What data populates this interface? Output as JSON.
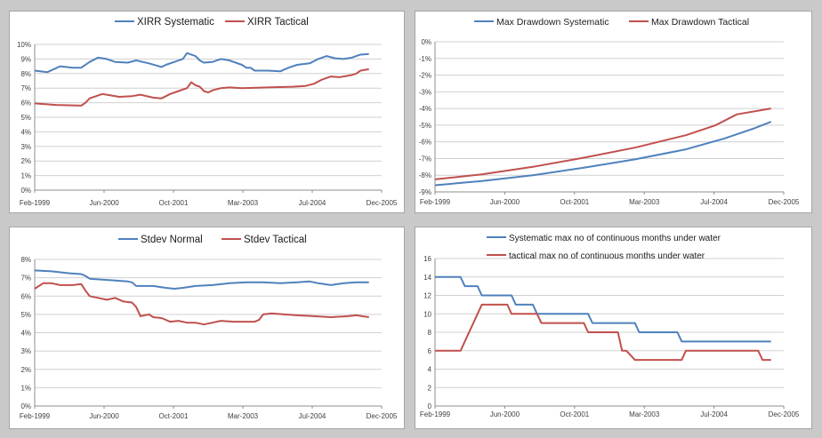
{
  "colors": {
    "blue": "#4f81bd",
    "red": "#c0504d"
  },
  "x_tick_labels": [
    "Feb-1999",
    "Jun-2000",
    "Oct-2001",
    "Mar-2003",
    "Jul-2004",
    "Dec-2005"
  ],
  "chart_data": [
    {
      "type": "line",
      "xlim": [
        "1999-02",
        "2005-12"
      ],
      "ylim": [
        0,
        10
      ],
      "y_ticks": [
        "0%",
        "1%",
        "2%",
        "3%",
        "4%",
        "5%",
        "6%",
        "7%",
        "8%",
        "9%",
        "10%"
      ],
      "x_ticks": [
        "Feb-1999",
        "Jun-2000",
        "Oct-2001",
        "Mar-2003",
        "Jul-2004",
        "Dec-2005"
      ],
      "legend": "top",
      "grid": true,
      "series": [
        {
          "name": "XIRR Systematic",
          "color": "#4f81bd",
          "points": [
            [
              "1999-02",
              8.2
            ],
            [
              "1999-05",
              8.1
            ],
            [
              "1999-08",
              8.5
            ],
            [
              "1999-11",
              8.4
            ],
            [
              "2000-01",
              8.4
            ],
            [
              "2000-03",
              8.8
            ],
            [
              "2000-05",
              9.1
            ],
            [
              "2000-07",
              9.0
            ],
            [
              "2000-09",
              8.8
            ],
            [
              "2000-12",
              8.75
            ],
            [
              "2001-02",
              8.9
            ],
            [
              "2001-05",
              8.7
            ],
            [
              "2001-08",
              8.45
            ],
            [
              "2001-09",
              8.6
            ],
            [
              "2001-11",
              8.8
            ],
            [
              "2002-01",
              9.0
            ],
            [
              "2002-02",
              9.4
            ],
            [
              "2002-04",
              9.2
            ],
            [
              "2002-05",
              8.9
            ],
            [
              "2002-06",
              8.75
            ],
            [
              "2002-08",
              8.8
            ],
            [
              "2002-10",
              9.0
            ],
            [
              "2002-12",
              8.9
            ],
            [
              "2003-03",
              8.6
            ],
            [
              "2003-04",
              8.4
            ],
            [
              "2003-05",
              8.4
            ],
            [
              "2003-06",
              8.2
            ],
            [
              "2003-09",
              8.2
            ],
            [
              "2003-12",
              8.15
            ],
            [
              "2004-02",
              8.4
            ],
            [
              "2004-04",
              8.6
            ],
            [
              "2004-07",
              8.7
            ],
            [
              "2004-09",
              9.0
            ],
            [
              "2004-11",
              9.2
            ],
            [
              "2005-01",
              9.05
            ],
            [
              "2005-03",
              9.0
            ],
            [
              "2005-05",
              9.1
            ],
            [
              "2005-06",
              9.2
            ],
            [
              "2005-07",
              9.3
            ],
            [
              "2005-09",
              9.35
            ]
          ]
        },
        {
          "name": "XIRR Tactical",
          "color": "#c0504d",
          "points": [
            [
              "1999-02",
              5.95
            ],
            [
              "1999-07",
              5.85
            ],
            [
              "2000-01",
              5.8
            ],
            [
              "2000-02",
              6.0
            ],
            [
              "2000-03",
              6.3
            ],
            [
              "2000-05",
              6.5
            ],
            [
              "2000-06",
              6.6
            ],
            [
              "2000-08",
              6.5
            ],
            [
              "2000-10",
              6.4
            ],
            [
              "2001-01",
              6.45
            ],
            [
              "2001-03",
              6.55
            ],
            [
              "2001-06",
              6.35
            ],
            [
              "2001-08",
              6.3
            ],
            [
              "2001-10",
              6.6
            ],
            [
              "2001-12",
              6.8
            ],
            [
              "2002-02",
              7.0
            ],
            [
              "2002-03",
              7.4
            ],
            [
              "2002-04",
              7.2
            ],
            [
              "2002-05",
              7.1
            ],
            [
              "2002-06",
              6.8
            ],
            [
              "2002-07",
              6.7
            ],
            [
              "2002-08",
              6.85
            ],
            [
              "2002-10",
              7.0
            ],
            [
              "2002-12",
              7.05
            ],
            [
              "2003-03",
              7.0
            ],
            [
              "2003-09",
              7.05
            ],
            [
              "2004-03",
              7.1
            ],
            [
              "2004-06",
              7.15
            ],
            [
              "2004-08",
              7.3
            ],
            [
              "2004-10",
              7.6
            ],
            [
              "2004-12",
              7.8
            ],
            [
              "2005-02",
              7.75
            ],
            [
              "2005-03",
              7.8
            ],
            [
              "2005-05",
              7.9
            ],
            [
              "2005-06",
              8.0
            ],
            [
              "2005-07",
              8.2
            ],
            [
              "2005-09",
              8.3
            ]
          ]
        }
      ]
    },
    {
      "type": "line",
      "xlim": [
        "1999-02",
        "2005-12"
      ],
      "ylim": [
        -9,
        0
      ],
      "y_ticks": [
        "0%",
        "-1%",
        "-2%",
        "-3%",
        "-4%",
        "-5%",
        "-6%",
        "-7%",
        "-8%",
        "-9%"
      ],
      "x_ticks": [
        "Feb-1999",
        "Jun-2000",
        "Oct-2001",
        "Mar-2003",
        "Jul-2004",
        "Dec-2005"
      ],
      "legend": "top",
      "grid": true,
      "series": [
        {
          "name": "Max Drawdown Systematic",
          "color": "#4f81bd",
          "points": [
            [
              "1999-02",
              -8.6
            ],
            [
              "2000-01",
              -8.35
            ],
            [
              "2001-01",
              -8.0
            ],
            [
              "2002-01",
              -7.55
            ],
            [
              "2003-01",
              -7.05
            ],
            [
              "2004-01",
              -6.45
            ],
            [
              "2004-10",
              -5.8
            ],
            [
              "2005-05",
              -5.2
            ],
            [
              "2005-09",
              -4.8
            ]
          ]
        },
        {
          "name": "Max Drawdown Tactical",
          "color": "#c0504d",
          "points": [
            [
              "1999-02",
              -8.25
            ],
            [
              "2000-01",
              -7.95
            ],
            [
              "2001-01",
              -7.5
            ],
            [
              "2002-01",
              -6.95
            ],
            [
              "2003-01",
              -6.35
            ],
            [
              "2004-01",
              -5.6
            ],
            [
              "2004-08",
              -5.0
            ],
            [
              "2005-01",
              -4.35
            ],
            [
              "2005-09",
              -4.0
            ]
          ]
        }
      ]
    },
    {
      "type": "line",
      "xlim": [
        "1999-02",
        "2005-12"
      ],
      "ylim": [
        0,
        8
      ],
      "y_ticks": [
        "0%",
        "1%",
        "2%",
        "3%",
        "4%",
        "5%",
        "6%",
        "7%",
        "8%"
      ],
      "x_ticks": [
        "Feb-1999",
        "Jun-2000",
        "Oct-2001",
        "Mar-2003",
        "Jul-2004",
        "Dec-2005"
      ],
      "legend": "top",
      "grid": true,
      "series": [
        {
          "name": "Stdev Normal",
          "color": "#4f81bd",
          "points": [
            [
              "1999-02",
              7.4
            ],
            [
              "1999-06",
              7.35
            ],
            [
              "1999-10",
              7.25
            ],
            [
              "2000-01",
              7.2
            ],
            [
              "2000-02",
              7.1
            ],
            [
              "2000-03",
              6.95
            ],
            [
              "2000-06",
              6.9
            ],
            [
              "2000-09",
              6.85
            ],
            [
              "2000-12",
              6.8
            ],
            [
              "2001-01",
              6.75
            ],
            [
              "2001-02",
              6.55
            ],
            [
              "2001-06",
              6.55
            ],
            [
              "2001-09",
              6.45
            ],
            [
              "2001-11",
              6.4
            ],
            [
              "2002-01",
              6.45
            ],
            [
              "2002-04",
              6.55
            ],
            [
              "2002-08",
              6.6
            ],
            [
              "2002-12",
              6.7
            ],
            [
              "2003-04",
              6.75
            ],
            [
              "2003-08",
              6.75
            ],
            [
              "2003-12",
              6.7
            ],
            [
              "2004-04",
              6.75
            ],
            [
              "2004-07",
              6.8
            ],
            [
              "2004-09",
              6.7
            ],
            [
              "2004-12",
              6.6
            ],
            [
              "2005-03",
              6.7
            ],
            [
              "2005-06",
              6.75
            ],
            [
              "2005-09",
              6.75
            ]
          ]
        },
        {
          "name": "Stdev Tactical",
          "color": "#c0504d",
          "points": [
            [
              "1999-02",
              6.4
            ],
            [
              "1999-04",
              6.7
            ],
            [
              "1999-06",
              6.7
            ],
            [
              "1999-08",
              6.6
            ],
            [
              "1999-11",
              6.6
            ],
            [
              "2000-01",
              6.65
            ],
            [
              "2000-02",
              6.3
            ],
            [
              "2000-03",
              6.0
            ],
            [
              "2000-05",
              5.9
            ],
            [
              "2000-07",
              5.8
            ],
            [
              "2000-09",
              5.9
            ],
            [
              "2000-11",
              5.7
            ],
            [
              "2001-01",
              5.65
            ],
            [
              "2001-02",
              5.4
            ],
            [
              "2001-03",
              4.9
            ],
            [
              "2001-05",
              5.0
            ],
            [
              "2001-06",
              4.85
            ],
            [
              "2001-08",
              4.8
            ],
            [
              "2001-10",
              4.6
            ],
            [
              "2001-12",
              4.65
            ],
            [
              "2002-02",
              4.55
            ],
            [
              "2002-04",
              4.55
            ],
            [
              "2002-06",
              4.45
            ],
            [
              "2002-08",
              4.55
            ],
            [
              "2002-10",
              4.65
            ],
            [
              "2003-01",
              4.6
            ],
            [
              "2003-04",
              4.6
            ],
            [
              "2003-06",
              4.6
            ],
            [
              "2003-07",
              4.7
            ],
            [
              "2003-08",
              5.0
            ],
            [
              "2003-10",
              5.05
            ],
            [
              "2004-01",
              5.0
            ],
            [
              "2004-04",
              4.95
            ],
            [
              "2004-08",
              4.9
            ],
            [
              "2004-12",
              4.85
            ],
            [
              "2005-04",
              4.9
            ],
            [
              "2005-06",
              4.95
            ],
            [
              "2005-09",
              4.85
            ]
          ]
        }
      ]
    },
    {
      "type": "line",
      "xlim": [
        "1999-02",
        "2005-12"
      ],
      "ylim": [
        0,
        16
      ],
      "y_ticks": [
        "0",
        "2",
        "4",
        "6",
        "8",
        "10",
        "12",
        "14",
        "16"
      ],
      "x_ticks": [
        "Feb-1999",
        "Jun-2000",
        "Oct-2001",
        "Mar-2003",
        "Jul-2004",
        "Dec-2005"
      ],
      "legend": "top",
      "grid": true,
      "series": [
        {
          "name": "Systematic max no of continuous months under water",
          "color": "#4f81bd",
          "points": [
            [
              "1999-02",
              14
            ],
            [
              "1999-08",
              14
            ],
            [
              "1999-09",
              13
            ],
            [
              "1999-12",
              13
            ],
            [
              "2000-01",
              12
            ],
            [
              "2000-08",
              12
            ],
            [
              "2000-09",
              11
            ],
            [
              "2001-01",
              11
            ],
            [
              "2001-02",
              10
            ],
            [
              "2002-02",
              10
            ],
            [
              "2002-03",
              9
            ],
            [
              "2003-01",
              9
            ],
            [
              "2003-02",
              8
            ],
            [
              "2003-11",
              8
            ],
            [
              "2003-12",
              7
            ],
            [
              "2005-09",
              7
            ]
          ]
        },
        {
          "name": "tactical max no of continuous months under water",
          "color": "#c0504d",
          "points": [
            [
              "1999-02",
              6
            ],
            [
              "1999-08",
              6
            ],
            [
              "2000-01",
              11
            ],
            [
              "2000-07",
              11
            ],
            [
              "2000-08",
              10
            ],
            [
              "2001-02",
              10
            ],
            [
              "2001-03",
              9
            ],
            [
              "2002-01",
              9
            ],
            [
              "2002-02",
              8
            ],
            [
              "2002-09",
              8
            ],
            [
              "2002-10",
              6
            ],
            [
              "2002-11",
              6
            ],
            [
              "2003-01",
              5
            ],
            [
              "2003-12",
              5
            ],
            [
              "2004-01",
              6
            ],
            [
              "2005-06",
              6
            ],
            [
              "2005-07",
              5
            ],
            [
              "2005-09",
              5
            ]
          ]
        }
      ]
    }
  ]
}
